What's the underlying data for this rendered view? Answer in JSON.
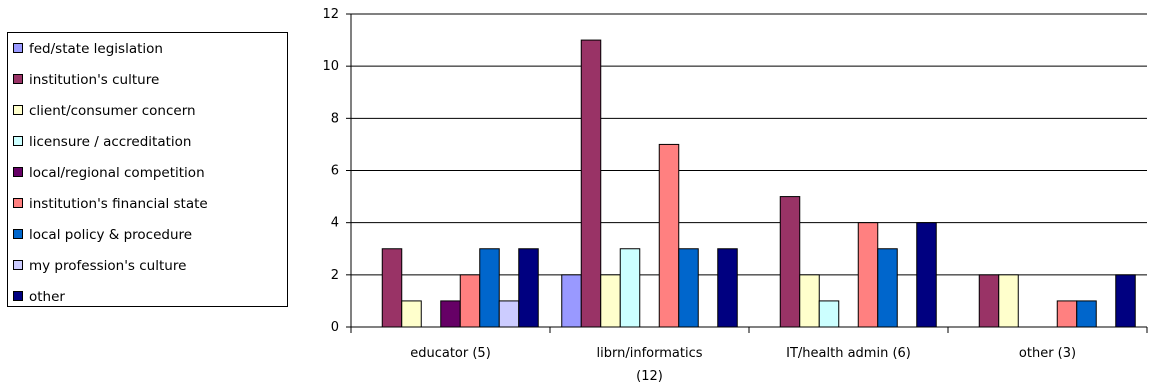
{
  "chart_data": {
    "type": "bar",
    "title": "",
    "xlabel": "",
    "ylabel": "",
    "ylim": [
      0,
      12
    ],
    "yticks": [
      0,
      2,
      4,
      6,
      8,
      10,
      12
    ],
    "grid": "horizontal",
    "legend_position": "left",
    "categories": [
      {
        "line1": "educator (5)",
        "line2": ""
      },
      {
        "line1": "librn/informatics",
        "line2": "(12)"
      },
      {
        "line1": "IT/health admin (6)",
        "line2": ""
      },
      {
        "line1": "other (3)",
        "line2": ""
      }
    ],
    "series": [
      {
        "name": "fed/state legislation",
        "color": "#9999ff",
        "values": [
          0,
          2,
          0,
          0
        ]
      },
      {
        "name": "institution's culture",
        "color": "#993366",
        "values": [
          3,
          11,
          5,
          2
        ]
      },
      {
        "name": "client/consumer concern",
        "color": "#ffffcc",
        "values": [
          1,
          2,
          2,
          2
        ]
      },
      {
        "name": "licensure / accreditation",
        "color": "#ccffff",
        "values": [
          0,
          3,
          1,
          0
        ]
      },
      {
        "name": "local/regional competition",
        "color": "#660066",
        "values": [
          1,
          0,
          0,
          0
        ]
      },
      {
        "name": "institution's financial state",
        "color": "#ff8080",
        "values": [
          2,
          7,
          4,
          1
        ]
      },
      {
        "name": "local policy & procedure",
        "color": "#0066cc",
        "values": [
          3,
          3,
          3,
          1
        ]
      },
      {
        "name": "my profession's culture",
        "color": "#ccccff",
        "values": [
          1,
          0,
          0,
          0
        ]
      },
      {
        "name": "other",
        "color": "#000080",
        "values": [
          3,
          3,
          4,
          2
        ]
      }
    ]
  }
}
